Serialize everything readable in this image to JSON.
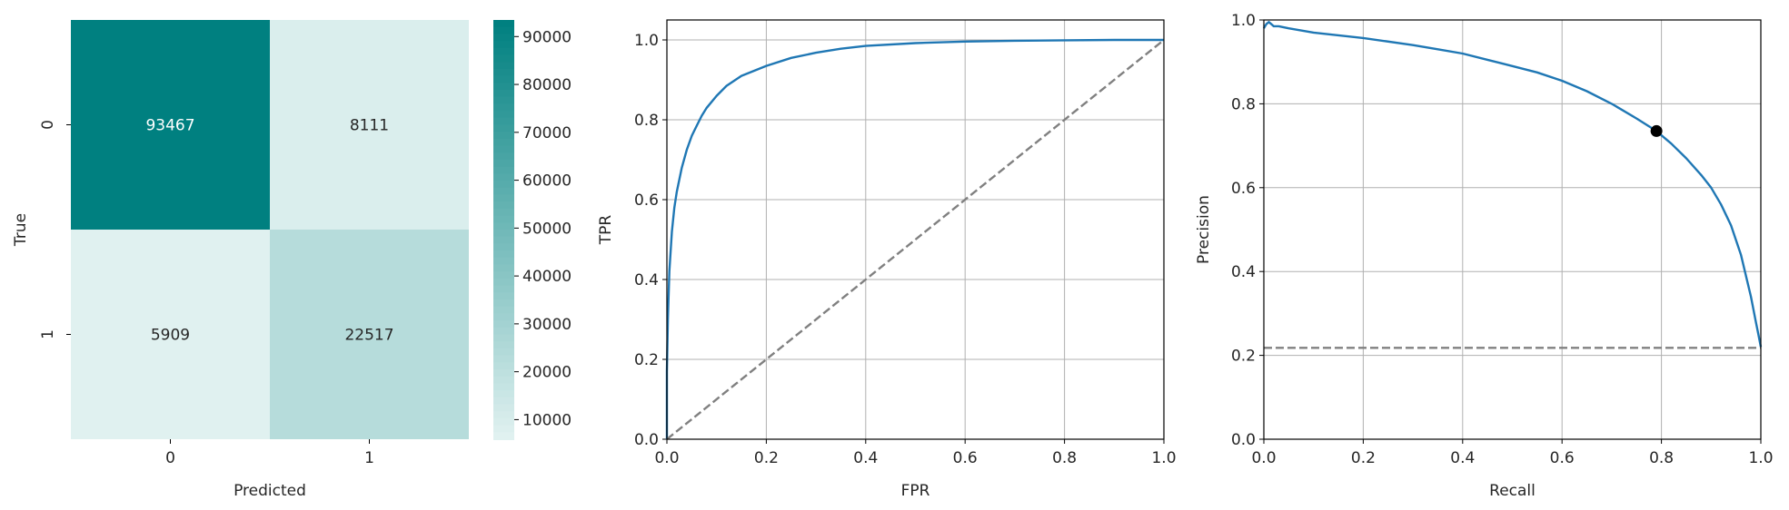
{
  "chart_data": [
    {
      "type": "heatmap",
      "xlabel": "Predicted",
      "ylabel": "True",
      "x_categories": [
        "0",
        "1"
      ],
      "y_categories": [
        "0",
        "1"
      ],
      "values": [
        [
          93467,
          8111
        ],
        [
          5909,
          22517
        ]
      ],
      "colormap": {
        "low": "#e0f1f0",
        "high": "#008080"
      },
      "colorbar": {
        "range": [
          5909,
          93467
        ],
        "ticks": [
          "10000",
          "20000",
          "30000",
          "40000",
          "50000",
          "60000",
          "70000",
          "80000",
          "90000"
        ]
      }
    },
    {
      "type": "line",
      "xlabel": "FPR",
      "ylabel": "TPR",
      "xlim": [
        0,
        1
      ],
      "ylim": [
        0,
        1.05
      ],
      "xticks": [
        "0.0",
        "0.2",
        "0.4",
        "0.6",
        "0.8",
        "1.0"
      ],
      "yticks": [
        "0.0",
        "0.2",
        "0.4",
        "0.6",
        "0.8",
        "1.0"
      ],
      "grid": true,
      "series": [
        {
          "style": "solid",
          "color": "#1f77b4",
          "x": [
            0.0,
            0.0,
            0.002,
            0.005,
            0.01,
            0.015,
            0.02,
            0.03,
            0.04,
            0.05,
            0.06,
            0.07,
            0.08,
            0.1,
            0.12,
            0.15,
            0.2,
            0.25,
            0.3,
            0.35,
            0.4,
            0.5,
            0.6,
            0.7,
            0.8,
            0.9,
            1.0
          ],
          "y": [
            0.0,
            0.17,
            0.3,
            0.42,
            0.52,
            0.58,
            0.62,
            0.68,
            0.725,
            0.76,
            0.785,
            0.81,
            0.83,
            0.86,
            0.885,
            0.91,
            0.935,
            0.955,
            0.968,
            0.978,
            0.985,
            0.992,
            0.996,
            0.998,
            0.999,
            1.0,
            1.0
          ]
        },
        {
          "style": "dashed",
          "color": "#808080",
          "x": [
            0,
            1
          ],
          "y": [
            0,
            1
          ]
        }
      ]
    },
    {
      "type": "line",
      "xlabel": "Recall",
      "ylabel": "Precision",
      "xlim": [
        0,
        1
      ],
      "ylim": [
        0,
        1
      ],
      "xticks": [
        "0.0",
        "0.2",
        "0.4",
        "0.6",
        "0.8",
        "1.0"
      ],
      "yticks": [
        "0.0",
        "0.2",
        "0.4",
        "0.6",
        "0.8",
        "1.0"
      ],
      "grid": true,
      "series": [
        {
          "style": "solid",
          "color": "#1f77b4",
          "x": [
            0.0,
            0.005,
            0.01,
            0.015,
            0.02,
            0.03,
            0.05,
            0.1,
            0.2,
            0.3,
            0.35,
            0.4,
            0.45,
            0.5,
            0.55,
            0.6,
            0.65,
            0.7,
            0.75,
            0.79,
            0.82,
            0.85,
            0.88,
            0.9,
            0.92,
            0.94,
            0.96,
            0.97,
            0.98,
            0.99,
            0.995,
            1.0
          ],
          "y": [
            0.98,
            0.99,
            0.995,
            0.99,
            0.985,
            0.985,
            0.98,
            0.97,
            0.957,
            0.94,
            0.93,
            0.92,
            0.905,
            0.89,
            0.875,
            0.855,
            0.83,
            0.8,
            0.765,
            0.735,
            0.705,
            0.67,
            0.63,
            0.6,
            0.56,
            0.51,
            0.44,
            0.39,
            0.34,
            0.28,
            0.25,
            0.22
          ]
        },
        {
          "style": "dashed",
          "color": "#808080",
          "x": [
            0,
            1
          ],
          "y": [
            0.218,
            0.218
          ]
        }
      ],
      "marker": {
        "x": 0.79,
        "y": 0.735,
        "color": "#000000"
      }
    }
  ]
}
